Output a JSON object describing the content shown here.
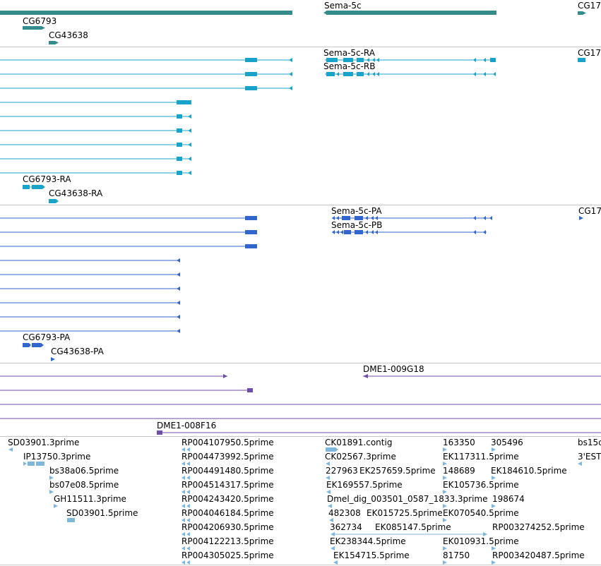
{
  "colors": {
    "gene": "#338b8b",
    "transcript": "#1aa3c8",
    "protein": "#3366cc",
    "clone": "#6f4ea6",
    "est": "#7fb6dc",
    "divider": "#c8c8c8"
  },
  "tracks": {
    "gene": {
      "labels": [
        "Sema-5c",
        "CG17",
        "CG6793",
        "CG43638"
      ]
    },
    "transcript": {
      "labels": [
        "Sema-5c-RA",
        "CG17",
        "Sema-5c-RB",
        "CG6793-RA",
        "CG43638-RA"
      ]
    },
    "protein": {
      "labels": [
        "Sema-5c-PA",
        "CG17",
        "Sema-5c-PB",
        "CG6793-PA",
        "CG43638-PA"
      ]
    },
    "clone": {
      "labels": [
        "DME1-009G18",
        "DME1-008F16"
      ]
    },
    "est": {
      "labels": [
        "SD03901.3prime",
        "IP13750.3prime",
        "bs38a06.5prime",
        "bs07e08.5prime",
        "GH11511.3prime",
        "SD03901.5prime",
        "RP004107950.5prime",
        "RP004473992.5prime",
        "RP004491480.5prime",
        "RP004514317.5prime",
        "RP004243420.5prime",
        "RP004046184.5prime",
        "RP004206930.5prime",
        "RP004122213.5prime",
        "RP004305025.5prime",
        "CK01891.contig",
        "CK02567.3prime",
        "227963",
        "EK257659.5prime",
        "EK169557.5prime",
        "Dmel_dig_003501_0587_1833.3prime",
        "482308",
        "EK015725.5prime",
        "362734",
        "EK085147.5prime",
        "EK238344.5prime",
        "EK154715.5prime",
        "163350",
        "305496",
        "EK117311.5prime",
        "148689",
        "EK184610.5prime",
        "EK105736.5prime",
        "198674",
        "EK070540.5prime",
        "RP003274252.5prime",
        "EK010931.5prime",
        "81750",
        "RP003420487.5prime",
        "bs15c",
        "3'EST"
      ]
    }
  }
}
